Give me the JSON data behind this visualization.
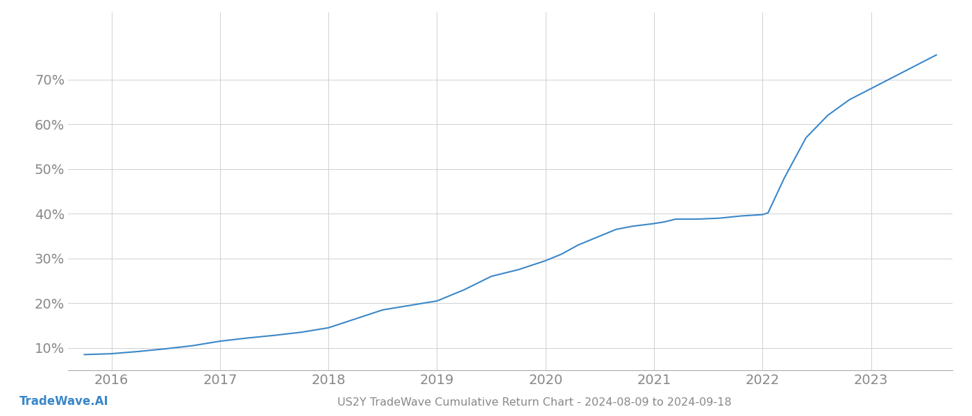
{
  "title": "US2Y TradeWave Cumulative Return Chart - 2024-08-09 to 2024-09-18",
  "watermark": "TradeWave.AI",
  "line_color": "#3a87c8",
  "background_color": "#ffffff",
  "grid_color": "#d0d0d0",
  "x_years": [
    2015.75,
    2016.0,
    2016.25,
    2016.5,
    2016.75,
    2017.0,
    2017.25,
    2017.5,
    2017.75,
    2018.0,
    2018.25,
    2018.5,
    2018.75,
    2019.0,
    2019.25,
    2019.5,
    2019.75,
    2020.0,
    2020.15,
    2020.3,
    2020.5,
    2020.65,
    2020.8,
    2021.0,
    2021.1,
    2021.2,
    2021.4,
    2021.6,
    2021.8,
    2022.0,
    2022.05,
    2022.2,
    2022.4,
    2022.6,
    2022.8,
    2023.0,
    2023.2,
    2023.4,
    2023.6
  ],
  "y_values": [
    8.5,
    8.7,
    9.2,
    9.8,
    10.5,
    11.5,
    12.2,
    12.8,
    13.5,
    14.5,
    16.5,
    18.5,
    19.5,
    20.5,
    23.0,
    26.0,
    27.5,
    29.5,
    31.0,
    33.0,
    35.0,
    36.5,
    37.2,
    37.8,
    38.2,
    38.8,
    38.8,
    39.0,
    39.5,
    39.8,
    40.2,
    48.0,
    57.0,
    62.0,
    65.5,
    68.0,
    70.5,
    73.0,
    75.5
  ],
  "yticks": [
    10,
    20,
    30,
    40,
    50,
    60,
    70
  ],
  "xticks": [
    2016,
    2017,
    2018,
    2019,
    2020,
    2021,
    2022,
    2023
  ],
  "xlim": [
    2015.6,
    2023.75
  ],
  "ylim": [
    5,
    85
  ],
  "tick_fontsize": 14,
  "title_fontsize": 11.5,
  "watermark_fontsize": 12
}
